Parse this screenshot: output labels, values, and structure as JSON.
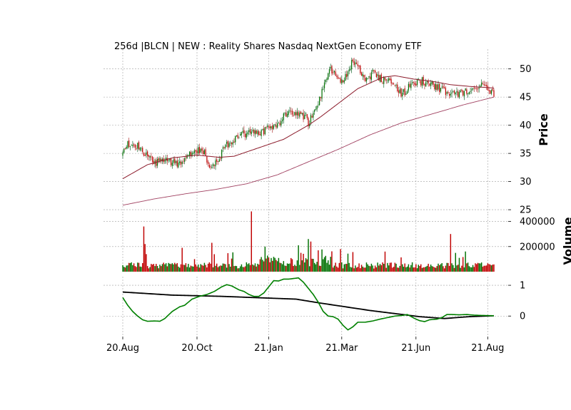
{
  "chart_data": {
    "type": "candlestick",
    "title": "256d |BLCN | NEW : Reality Shares Nasdaq NextGen Economy ETF",
    "price_panel": {
      "ylabel": "Price",
      "ylim": [
        24,
        53.5
      ],
      "yticks": [
        25,
        30,
        35,
        40,
        45,
        50
      ],
      "grid": true,
      "close_path": [
        [
          0,
          34.5
        ],
        [
          3,
          36.5
        ],
        [
          8,
          36.8
        ],
        [
          14,
          36.0
        ],
        [
          20,
          34.5
        ],
        [
          26,
          33.0
        ],
        [
          32,
          34.2
        ],
        [
          38,
          33.5
        ],
        [
          44,
          33.0
        ],
        [
          50,
          34.0
        ],
        [
          56,
          35.0
        ],
        [
          62,
          35.5
        ],
        [
          66,
          35.0
        ],
        [
          70,
          33.0
        ],
        [
          74,
          32.8
        ],
        [
          78,
          34.2
        ],
        [
          82,
          36.0
        ],
        [
          88,
          37.0
        ],
        [
          94,
          38.0
        ],
        [
          100,
          38.5
        ],
        [
          106,
          38.8
        ],
        [
          112,
          38.5
        ],
        [
          118,
          39.5
        ],
        [
          124,
          39.8
        ],
        [
          130,
          41.5
        ],
        [
          136,
          42.0
        ],
        [
          142,
          41.8
        ],
        [
          148,
          41.5
        ],
        [
          150,
          40.5
        ],
        [
          154,
          42.0
        ],
        [
          158,
          44.0
        ],
        [
          162,
          47.0
        ],
        [
          166,
          49.5
        ],
        [
          170,
          50.0
        ],
        [
          174,
          48.0
        ],
        [
          178,
          47.5
        ],
        [
          182,
          49.5
        ],
        [
          186,
          51.5
        ],
        [
          190,
          50.5
        ],
        [
          194,
          49.0
        ],
        [
          198,
          48.0
        ],
        [
          202,
          49.5
        ],
        [
          206,
          48.5
        ],
        [
          210,
          48.0
        ],
        [
          214,
          48.5
        ],
        [
          218,
          47.5
        ],
        [
          222,
          46.5
        ],
        [
          226,
          45.5
        ],
        [
          230,
          46.5
        ],
        [
          236,
          47.5
        ],
        [
          242,
          47.8
        ],
        [
          248,
          47.5
        ],
        [
          254,
          46.8
        ],
        [
          260,
          46.0
        ],
        [
          266,
          45.5
        ],
        [
          272,
          45.8
        ],
        [
          278,
          46.2
        ],
        [
          284,
          46.5
        ],
        [
          290,
          47.5
        ],
        [
          295,
          46.5
        ],
        [
          300,
          45.5
        ]
      ],
      "ma_fast": [
        [
          0,
          30.5
        ],
        [
          20,
          33.0
        ],
        [
          40,
          34.2
        ],
        [
          60,
          34.7
        ],
        [
          78,
          34.3
        ],
        [
          90,
          34.5
        ],
        [
          110,
          36.0
        ],
        [
          130,
          37.5
        ],
        [
          150,
          40.0
        ],
        [
          160,
          41.5
        ],
        [
          175,
          44.0
        ],
        [
          190,
          46.5
        ],
        [
          200,
          47.5
        ],
        [
          210,
          48.5
        ],
        [
          220,
          48.8
        ],
        [
          235,
          48.2
        ],
        [
          250,
          47.8
        ],
        [
          265,
          47.2
        ],
        [
          280,
          46.9
        ],
        [
          300,
          46.6
        ]
      ],
      "ma_slow": [
        [
          0,
          25.8
        ],
        [
          25,
          26.9
        ],
        [
          50,
          27.8
        ],
        [
          75,
          28.6
        ],
        [
          100,
          29.6
        ],
        [
          125,
          31.2
        ],
        [
          150,
          33.5
        ],
        [
          175,
          35.8
        ],
        [
          200,
          38.3
        ],
        [
          225,
          40.4
        ],
        [
          250,
          42.0
        ],
        [
          275,
          43.6
        ],
        [
          300,
          45.0
        ]
      ]
    },
    "volume_panel": {
      "ylabel": "Volume",
      "ylim": [
        0,
        460000
      ],
      "yticks": [
        200000,
        400000
      ],
      "yticklabels": [
        "200000",
        "400000"
      ],
      "spikes": [
        [
          17,
          360000,
          "down"
        ],
        [
          18,
          220000,
          "down"
        ],
        [
          19,
          140000,
          "down"
        ],
        [
          48,
          190000,
          "down"
        ],
        [
          58,
          100000,
          "down"
        ],
        [
          72,
          230000,
          "down"
        ],
        [
          104,
          480000,
          "down"
        ],
        [
          115,
          200000,
          "up"
        ],
        [
          142,
          210000,
          "up"
        ],
        [
          150,
          260000,
          "up"
        ],
        [
          152,
          240000,
          "down"
        ],
        [
          158,
          170000,
          "down"
        ],
        [
          176,
          180000,
          "down"
        ],
        [
          212,
          160000,
          "down"
        ],
        [
          265,
          300000,
          "down"
        ],
        [
          272,
          110000,
          "up"
        ]
      ]
    },
    "indicator_panel": {
      "ylim": [
        -0.62,
        1.28
      ],
      "yticks": [
        0,
        1
      ],
      "yticklabels": [
        "0",
        "1"
      ],
      "fast_line": [
        [
          0,
          0.6
        ],
        [
          4,
          0.35
        ],
        [
          8,
          0.15
        ],
        [
          12,
          0.0
        ],
        [
          16,
          -0.12
        ],
        [
          20,
          -0.17
        ],
        [
          26,
          -0.16
        ],
        [
          30,
          -0.17
        ],
        [
          34,
          -0.08
        ],
        [
          40,
          0.15
        ],
        [
          46,
          0.3
        ],
        [
          50,
          0.35
        ],
        [
          56,
          0.55
        ],
        [
          62,
          0.64
        ],
        [
          68,
          0.7
        ],
        [
          74,
          0.8
        ],
        [
          80,
          0.95
        ],
        [
          84,
          1.02
        ],
        [
          88,
          0.98
        ],
        [
          94,
          0.85
        ],
        [
          98,
          0.8
        ],
        [
          102,
          0.7
        ],
        [
          106,
          0.64
        ],
        [
          110,
          0.64
        ],
        [
          114,
          0.75
        ],
        [
          118,
          0.95
        ],
        [
          122,
          1.15
        ],
        [
          126,
          1.14
        ],
        [
          130,
          1.2
        ],
        [
          134,
          1.2
        ],
        [
          138,
          1.22
        ],
        [
          142,
          1.24
        ],
        [
          146,
          1.1
        ],
        [
          150,
          0.9
        ],
        [
          154,
          0.7
        ],
        [
          158,
          0.45
        ],
        [
          162,
          0.15
        ],
        [
          166,
          0.0
        ],
        [
          170,
          -0.02
        ],
        [
          174,
          -0.1
        ],
        [
          178,
          -0.3
        ],
        [
          182,
          -0.45
        ],
        [
          186,
          -0.35
        ],
        [
          190,
          -0.2
        ],
        [
          196,
          -0.2
        ],
        [
          202,
          -0.16
        ],
        [
          208,
          -0.1
        ],
        [
          214,
          -0.05
        ],
        [
          220,
          0.0
        ],
        [
          226,
          0.02
        ],
        [
          230,
          0.05
        ],
        [
          236,
          -0.08
        ],
        [
          240,
          -0.15
        ],
        [
          244,
          -0.18
        ],
        [
          248,
          -0.12
        ],
        [
          254,
          -0.1
        ],
        [
          258,
          -0.05
        ],
        [
          262,
          0.05
        ],
        [
          266,
          0.05
        ],
        [
          272,
          0.04
        ],
        [
          278,
          0.05
        ],
        [
          284,
          0.03
        ],
        [
          290,
          0.02
        ],
        [
          300,
          0.01
        ]
      ],
      "slow_line": [
        [
          0,
          0.78
        ],
        [
          40,
          0.68
        ],
        [
          80,
          0.64
        ],
        [
          120,
          0.58
        ],
        [
          140,
          0.55
        ],
        [
          160,
          0.42
        ],
        [
          180,
          0.3
        ],
        [
          200,
          0.18
        ],
        [
          220,
          0.08
        ],
        [
          240,
          -0.02
        ],
        [
          260,
          -0.08
        ],
        [
          280,
          -0.02
        ],
        [
          300,
          0.01
        ]
      ]
    },
    "x_axis": {
      "num_days": 301,
      "ticks": [
        {
          "index": 0,
          "label": "20.Aug"
        },
        {
          "index": 60,
          "label": "20.Oct"
        },
        {
          "index": 118,
          "label": "21.Jan"
        },
        {
          "index": 177,
          "label": "21.Mar"
        },
        {
          "index": 237,
          "label": "21.Jun"
        },
        {
          "index": 295,
          "label": "21.Aug"
        }
      ]
    },
    "colors": {
      "up": "#007000",
      "down": "#c00000",
      "wick_up": "#1a6a30",
      "wick_down": "#b03030",
      "ma_fast": "#8b1a2a",
      "ma_slow": "#a04060",
      "indicator_fast": "#008000",
      "indicator_slow": "#000000",
      "grid": "#a0a0a0"
    }
  }
}
